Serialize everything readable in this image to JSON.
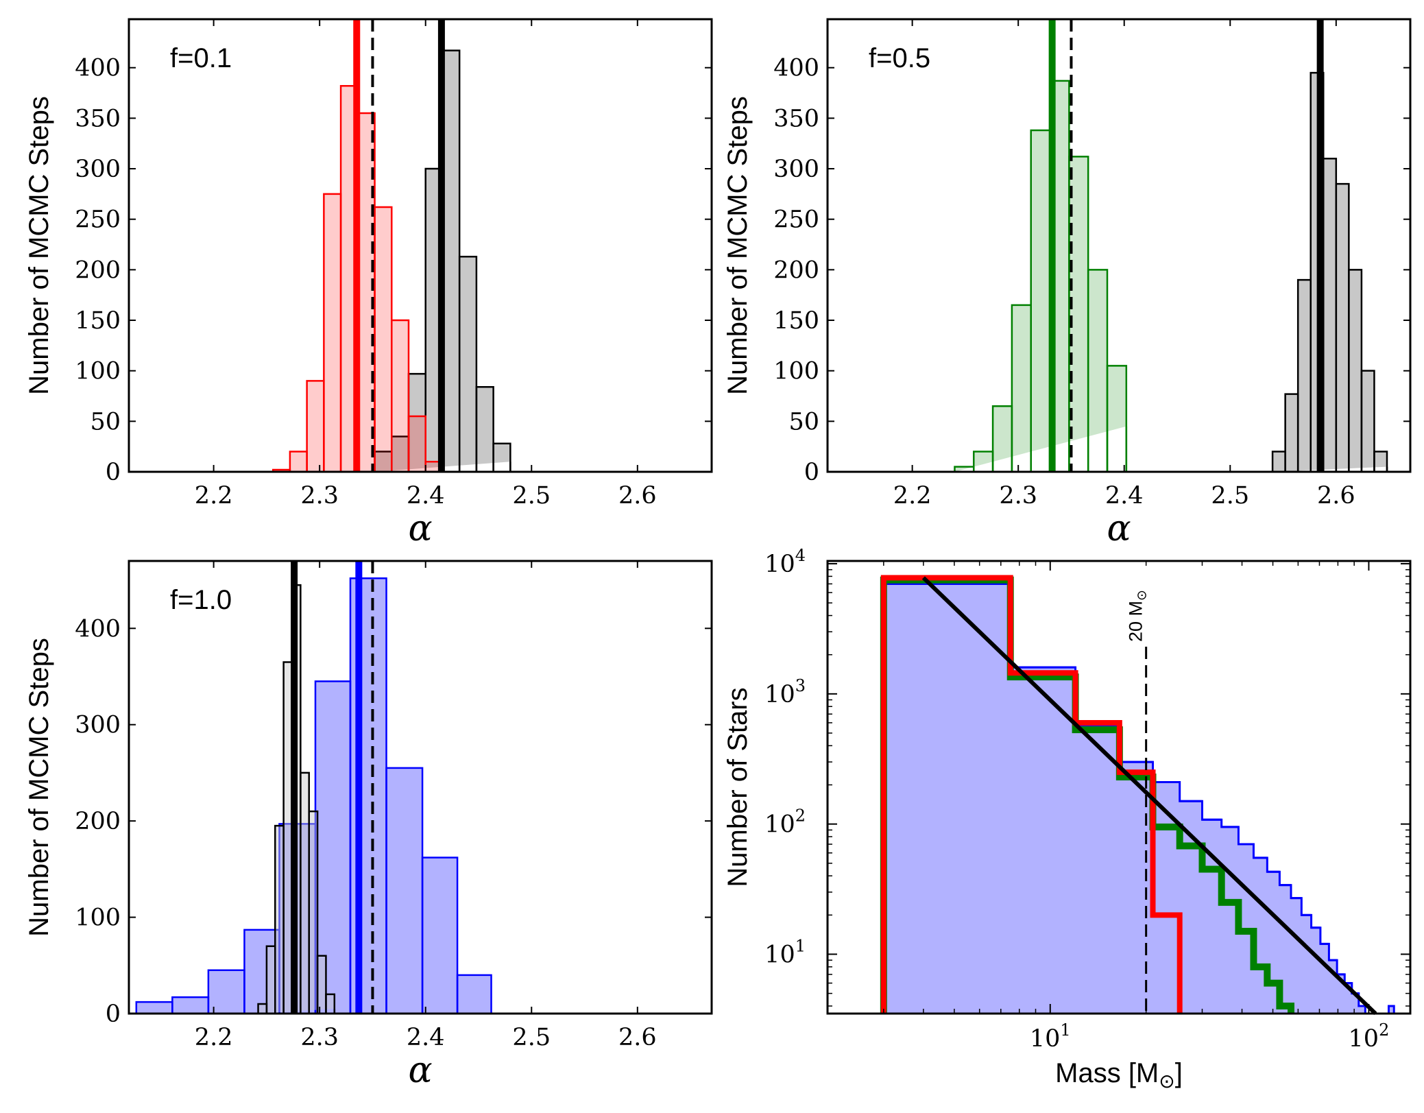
{
  "figure": {
    "panels": [
      {
        "id": "p1",
        "type": "histogram_alpha",
        "annotation": "f=0.1",
        "xlabel": "α",
        "ylabel": "Number of MCMC Steps",
        "xlim": [
          2.12,
          2.67
        ],
        "ylim": [
          0,
          448
        ],
        "xticks": [
          2.2,
          2.3,
          2.4,
          2.5,
          2.6
        ],
        "xtick_labels": [
          "2.2",
          "2.3",
          "2.4",
          "2.5",
          "2.6"
        ],
        "yticks": [
          0,
          50,
          100,
          150,
          200,
          250,
          300,
          350,
          400
        ],
        "ytick_labels": [
          "0",
          "50",
          "100",
          "150",
          "200",
          "250",
          "300",
          "350",
          "400"
        ],
        "hists": [
          {
            "name": "gray",
            "stroke": "#000000",
            "fill": "#c8c8c8",
            "fill_opacity": 1,
            "edges": [
              2.352,
              2.368,
              2.384,
              2.4,
              2.416,
              2.432,
              2.448,
              2.464,
              2.48
            ],
            "counts": [
              20,
              35,
              97,
              300,
              417,
              213,
              84,
              28,
              10
            ]
          },
          {
            "name": "red",
            "stroke": "#ff0000",
            "fill": "#ff0000",
            "fill_opacity": 0.2,
            "edges": [
              2.256,
              2.272,
              2.288,
              2.304,
              2.32,
              2.336,
              2.352,
              2.368,
              2.384,
              2.4,
              2.416
            ],
            "counts": [
              2,
              20,
              90,
              275,
              382,
              355,
              262,
              150,
              55,
              10
            ]
          }
        ],
        "vlines": [
          {
            "x": 2.415,
            "color": "#000000",
            "style": "solid",
            "weight": "thick"
          },
          {
            "x": 2.335,
            "color": "#ff0000",
            "style": "solid",
            "weight": "thick"
          },
          {
            "x": 2.35,
            "color": "#000000",
            "style": "dashed",
            "weight": "normal"
          }
        ]
      },
      {
        "id": "p2",
        "type": "histogram_alpha",
        "annotation": "f=0.5",
        "xlabel": "α",
        "ylabel": "Number of MCMC Steps",
        "xlim": [
          2.12,
          2.67
        ],
        "ylim": [
          0,
          448
        ],
        "xticks": [
          2.2,
          2.3,
          2.4,
          2.5,
          2.6
        ],
        "xtick_labels": [
          "2.2",
          "2.3",
          "2.4",
          "2.5",
          "2.6"
        ],
        "yticks": [
          0,
          50,
          100,
          150,
          200,
          250,
          300,
          350,
          400
        ],
        "ytick_labels": [
          "0",
          "50",
          "100",
          "150",
          "200",
          "250",
          "300",
          "350",
          "400"
        ],
        "hists": [
          {
            "name": "green",
            "stroke": "#008000",
            "fill": "#008000",
            "fill_opacity": 0.2,
            "edges": [
              2.24,
              2.258,
              2.276,
              2.294,
              2.312,
              2.33,
              2.348,
              2.366,
              2.384,
              2.402
            ],
            "counts": [
              5,
              20,
              65,
              165,
              338,
              387,
              312,
              200,
              105,
              45
            ]
          },
          {
            "name": "gray",
            "stroke": "#000000",
            "fill": "#c8c8c8",
            "fill_opacity": 1,
            "edges": [
              2.54,
              2.552,
              2.564,
              2.576,
              2.588,
              2.6,
              2.612,
              2.624,
              2.636,
              2.648
            ],
            "counts": [
              20,
              77,
              190,
              395,
              310,
              285,
              200,
              100,
              20,
              5
            ]
          }
        ],
        "vlines": [
          {
            "x": 2.585,
            "color": "#000000",
            "style": "solid",
            "weight": "thick"
          },
          {
            "x": 2.332,
            "color": "#008000",
            "style": "solid",
            "weight": "thick"
          },
          {
            "x": 2.35,
            "color": "#000000",
            "style": "dashed",
            "weight": "normal"
          }
        ]
      },
      {
        "id": "p3",
        "type": "histogram_alpha",
        "annotation": "f=1.0",
        "xlabel": "α",
        "ylabel": "Number of MCMC Steps",
        "xlim": [
          2.12,
          2.67
        ],
        "ylim": [
          0,
          470
        ],
        "xticks": [
          2.2,
          2.3,
          2.4,
          2.5,
          2.6
        ],
        "xtick_labels": [
          "2.2",
          "2.3",
          "2.4",
          "2.5",
          "2.6"
        ],
        "yticks": [
          0,
          100,
          200,
          300,
          400
        ],
        "ytick_labels": [
          "0",
          "100",
          "200",
          "300",
          "400"
        ],
        "hists": [
          {
            "name": "blue",
            "stroke": "#0000ff",
            "fill": "#0000ff",
            "fill_opacity": 0.3,
            "edges": [
              2.127,
              2.161,
              2.195,
              2.229,
              2.262,
              2.296,
              2.329,
              2.363,
              2.397,
              2.43,
              2.462
            ],
            "counts": [
              12,
              17,
              45,
              87,
              197,
              345,
              452,
              255,
              162,
              40
            ]
          },
          {
            "name": "gray",
            "stroke": "#000000",
            "fill": "#c8c8c8",
            "fill_opacity": 0.45,
            "edges": [
              2.242,
              2.25,
              2.258,
              2.266,
              2.274,
              2.282,
              2.29,
              2.298,
              2.306,
              2.314
            ],
            "counts": [
              10,
              70,
              195,
              365,
              445,
              250,
              210,
              60,
              20,
              5
            ]
          }
        ],
        "vlines": [
          {
            "x": 2.276,
            "color": "#000000",
            "style": "solid",
            "weight": "thick"
          },
          {
            "x": 2.337,
            "color": "#0000ff",
            "style": "solid",
            "weight": "thick"
          },
          {
            "x": 2.35,
            "color": "#000000",
            "style": "dashed",
            "weight": "normal"
          }
        ]
      },
      {
        "id": "p4",
        "type": "mass_function",
        "xlabel": "Mass [M",
        "xlabel_sun": "⊙",
        "xlabel_close": "]",
        "ylabel": "Number of Stars",
        "xlim": [
          2.0,
          135
        ],
        "ylim": [
          3.5,
          10500
        ],
        "xticks": [
          10,
          100
        ],
        "xtick_base": "10",
        "xtick_exps": [
          "1",
          "2"
        ],
        "yticks": [
          10,
          100,
          1000,
          10000
        ],
        "ytick_base": "10",
        "ytick_exps": [
          "1",
          "2",
          "3",
          "4"
        ],
        "vline_label": "20 M",
        "vline_label_sun": "⊙",
        "vline_x": 20,
        "blue": {
          "stroke": "#0000ff",
          "fill": "#0000ff",
          "fill_opacity": 0.3,
          "edges": [
            3.0,
            7.5,
            12.0,
            16.5,
            21.0,
            25.5,
            30.0,
            34.5,
            39.0,
            43.5,
            48.0,
            52.5,
            57.0,
            61.5,
            66.0,
            70.5,
            75.0,
            79.5,
            84.0,
            88.5,
            93.0,
            97.5,
            102.0,
            106.5,
            111.0,
            115.5,
            120.0
          ],
          "counts": [
            7000,
            1600,
            560,
            300,
            210,
            150,
            108,
            95,
            70,
            55,
            43,
            34,
            27,
            20,
            16,
            12,
            9,
            7,
            6,
            5,
            4,
            3.5,
            3.5,
            3.5,
            3.5,
            4
          ]
        },
        "green": {
          "stroke": "#008000",
          "edges": [
            3.0,
            7.5,
            12.0,
            16.5,
            21.0,
            25.5,
            30.0,
            34.5,
            39.0,
            43.5,
            48.0,
            52.5,
            57.0
          ],
          "counts": [
            7500,
            1350,
            530,
            230,
            95,
            68,
            45,
            25,
            15,
            8,
            6,
            4
          ]
        },
        "red": {
          "stroke": "#ff0000",
          "edges": [
            3.0,
            7.5,
            12.0,
            16.5,
            21.0,
            25.5
          ],
          "counts": [
            7800,
            1450,
            600,
            250,
            20
          ]
        },
        "fit": {
          "color": "#000000",
          "x": [
            4.0,
            105.0
          ],
          "y": [
            7800,
            3.5
          ]
        }
      }
    ]
  }
}
